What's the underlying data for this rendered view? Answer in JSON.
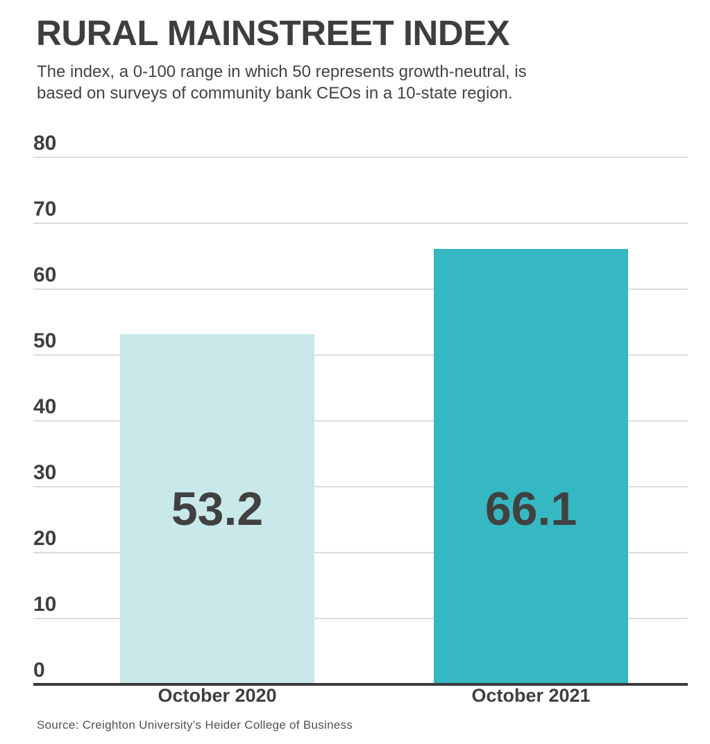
{
  "header": {
    "title": "RURAL MAINSTREET INDEX",
    "subtitle_line1": "The index, a 0-100 range in which 50 represents growth-neutral, is",
    "subtitle_line2": "based on surveys of community bank CEOs in a 10-state region."
  },
  "source_note": "Source: Creighton University’s Heider College of Business",
  "colors": {
    "background": "#ffffff",
    "title_text": "#3e3e3e",
    "subtitle_text": "#434343",
    "axis_text": "#3f3f3f",
    "value_text": "#414141",
    "gridline": "#dcdcdc",
    "axis_line": "#3a3a3a",
    "bar_2020": "#c9e8ea",
    "bar_2021": "#36b8c2"
  },
  "chart_data": {
    "type": "bar",
    "title": "RURAL MAINSTREET INDEX",
    "subtitle": "The index, a 0-100 range in which 50 represents growth-neutral, is based on surveys of community bank CEOs in a 10-state region.",
    "categories": [
      "October 2020",
      "October 2021"
    ],
    "values": [
      53.2,
      66.1
    ],
    "value_labels": [
      "53.2",
      "66.1"
    ],
    "bar_colors": [
      "#c9e8ea",
      "#36b8c2"
    ],
    "ylim": [
      0,
      80
    ],
    "yticks": [
      0,
      10,
      20,
      30,
      40,
      50,
      60,
      70,
      80
    ],
    "grid": true,
    "legend": "none",
    "source": "Source: Creighton University’s Heider College of Business"
  }
}
